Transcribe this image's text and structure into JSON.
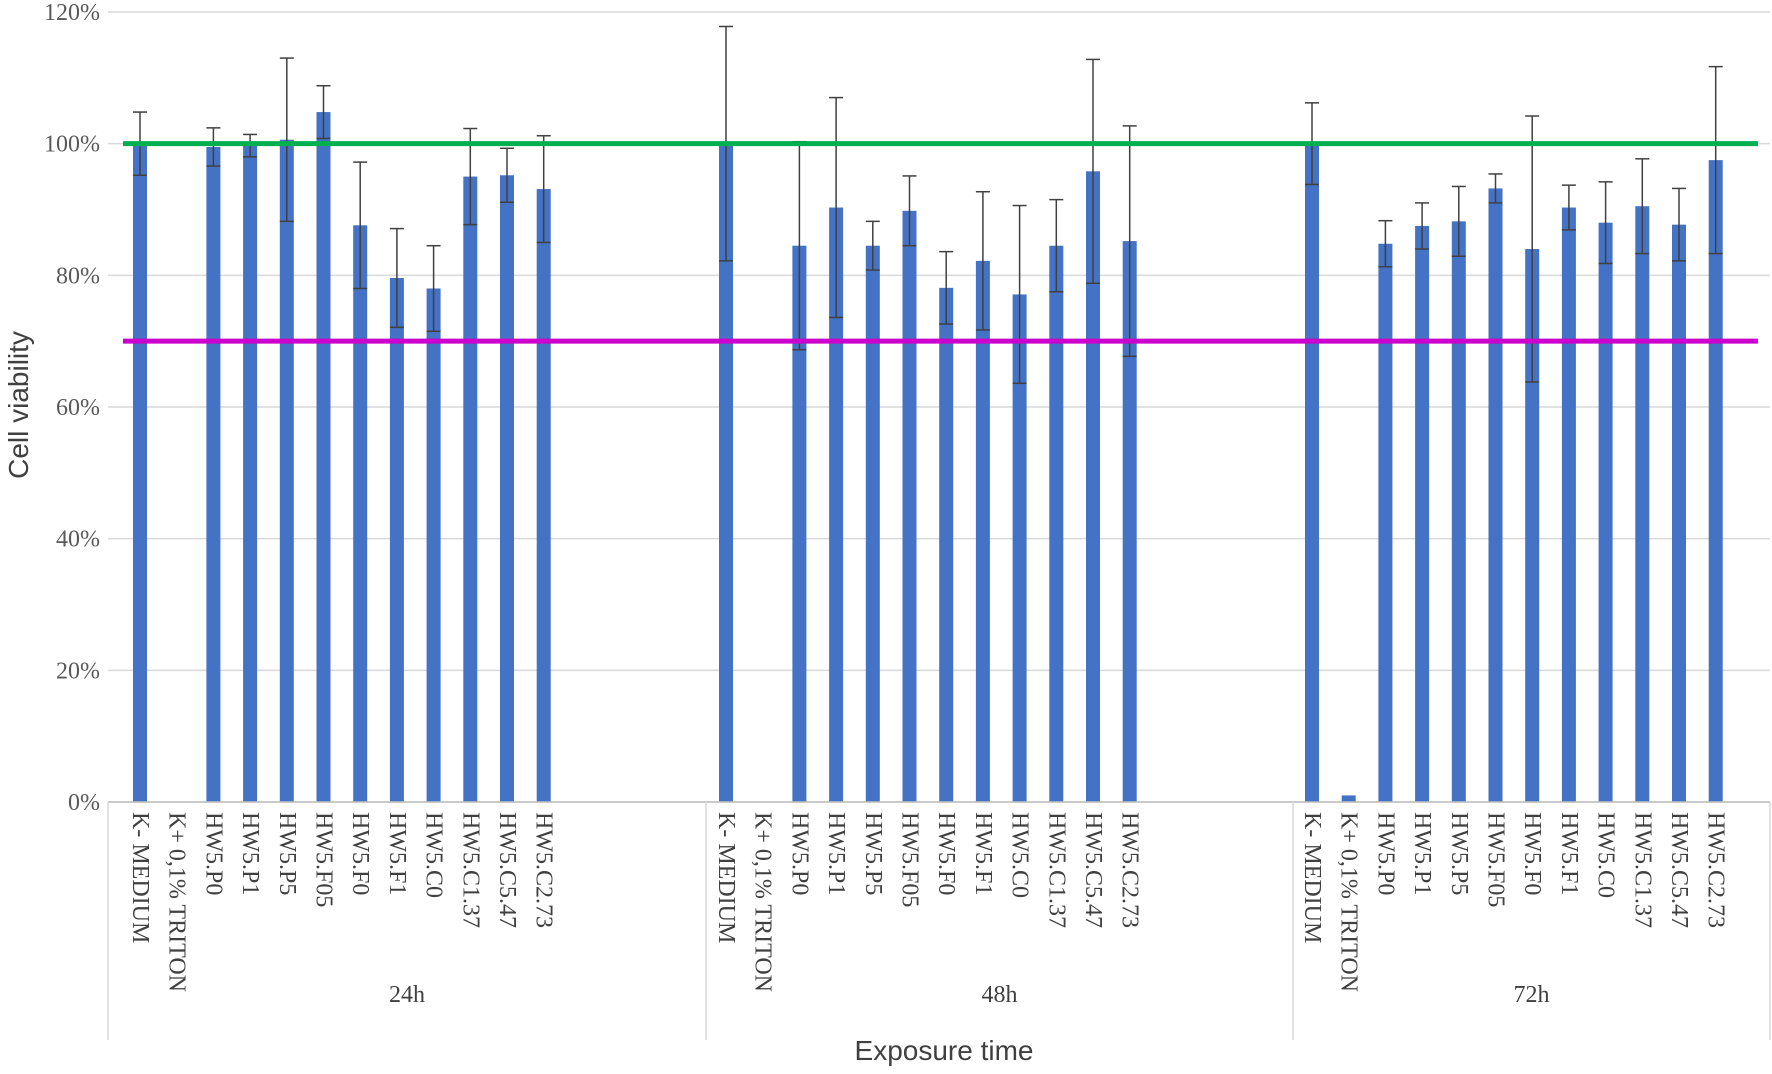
{
  "chart_data": {
    "type": "bar",
    "title": "",
    "xlabel": "Exposure time",
    "ylabel": "Cell viability",
    "ylim": [
      0,
      1.2
    ],
    "yticks": [
      0,
      0.2,
      0.4,
      0.6,
      0.8,
      1.0,
      1.2
    ],
    "ytick_labels": [
      "0%",
      "20%",
      "40%",
      "60%",
      "80%",
      "100%",
      "120%"
    ],
    "grid": true,
    "legend": "none",
    "bar_color": "#4472C4",
    "reference_lines": [
      {
        "value": 1.0,
        "color": "#00B050"
      },
      {
        "value": 0.7,
        "color": "#CC00CC"
      }
    ],
    "groups": [
      {
        "label": "24h",
        "categories": [
          "K- MEDIUM",
          "K+ 0,1% TRITON",
          "HW5.P0",
          "HW5.P1",
          "HW5.P5",
          "HW5.F05",
          "HW5.F0",
          "HW5.F1",
          "HW5.C0",
          "HW5.C1.37",
          "HW5.C5.47",
          "HW5.C2.73"
        ],
        "values": [
          1.0,
          0.0,
          0.995,
          0.997,
          1.006,
          1.048,
          0.876,
          0.796,
          0.78,
          0.95,
          0.952,
          0.931
        ],
        "errors": [
          0.048,
          0.0,
          0.029,
          0.017,
          0.124,
          0.04,
          0.096,
          0.075,
          0.065,
          0.073,
          0.041,
          0.081
        ]
      },
      {
        "label": "48h",
        "categories": [
          "K- MEDIUM",
          "K+ 0,1% TRITON",
          "HW5.P0",
          "HW5.P1",
          "HW5.P5",
          "HW5.F05",
          "HW5.F0",
          "HW5.F1",
          "HW5.C0",
          "HW5.C1.37",
          "HW5.C5.47",
          "HW5.C2.73"
        ],
        "values": [
          1.0,
          0.0,
          0.845,
          0.903,
          0.845,
          0.898,
          0.781,
          0.822,
          0.771,
          0.845,
          0.958,
          0.852
        ],
        "errors": [
          0.178,
          0.0,
          0.158,
          0.167,
          0.037,
          0.053,
          0.055,
          0.105,
          0.135,
          0.07,
          0.17,
          0.175
        ]
      },
      {
        "label": "72h",
        "categories": [
          "K- MEDIUM",
          "K+ 0,1% TRITON",
          "HW5.P0",
          "HW5.P1",
          "HW5.P5",
          "HW5.F05",
          "HW5.F0",
          "HW5.F1",
          "HW5.C0",
          "HW5.C1.37",
          "HW5.C5.47",
          "HW5.C2.73"
        ],
        "values": [
          1.0,
          0.01,
          0.848,
          0.875,
          0.882,
          0.932,
          0.84,
          0.903,
          0.88,
          0.905,
          0.877,
          0.975
        ],
        "errors": [
          0.062,
          0.0,
          0.035,
          0.035,
          0.053,
          0.022,
          0.202,
          0.034,
          0.062,
          0.072,
          0.055,
          0.142
        ]
      }
    ]
  }
}
